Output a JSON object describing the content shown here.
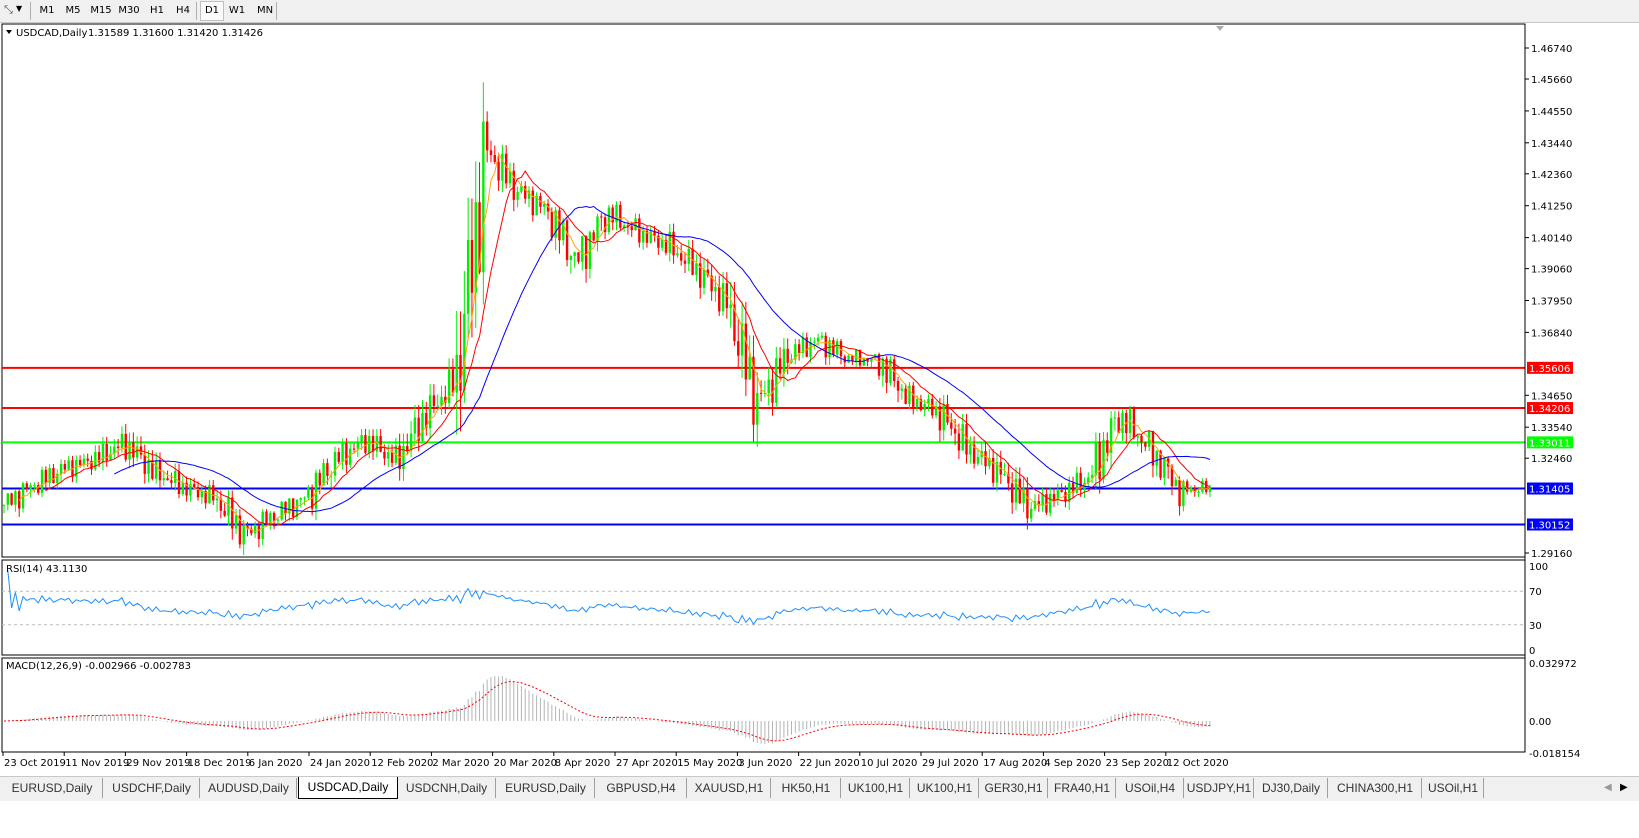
{
  "toolbar": {
    "tool_icon": "line-tools-icon",
    "timeframes": [
      "M1",
      "M5",
      "M15",
      "M30",
      "H1",
      "H4",
      "D1",
      "W1",
      "MN"
    ],
    "active_timeframe": "D1"
  },
  "chart_header": {
    "symbol": "USDCAD,Daily",
    "ohlc": "1.31589 1.31600 1.31420 1.31426"
  },
  "indicators": {
    "rsi_label": "RSI(14) 43.1130",
    "macd_label": "MACD(12,26,9) -0.002966 -0.002783"
  },
  "colors": {
    "bull": "#00ee00",
    "bear": "#ff0000",
    "ma_fast": "#ffa500",
    "ma_mid": "#ff0000",
    "ma_slow": "#0000ff",
    "rsi": "#1e90ff",
    "macd_hist": "#b4b4b4",
    "macd_signal": "#ff0000"
  },
  "chart_data": {
    "type": "candlestick",
    "price_axis_ticks": [
      "1.46740",
      "1.45660",
      "1.44550",
      "1.43440",
      "1.42360",
      "1.41250",
      "1.40140",
      "1.39060",
      "1.37950",
      "1.36840",
      "1.34650",
      "1.33540",
      "1.32460",
      "1.29160"
    ],
    "price_range": [
      1.2916,
      1.4674
    ],
    "horizontal_levels": [
      {
        "price": "1.35606",
        "color": "#ff0000"
      },
      {
        "price": "1.34206",
        "color": "#ff0000"
      },
      {
        "price": "1.33011",
        "color": "#00ff00"
      },
      {
        "price": "1.31405",
        "color": "#0000ff"
      },
      {
        "price": "1.30152",
        "color": "#0000ff"
      }
    ],
    "date_ticks": [
      "23 Oct 2019",
      "11 Nov 2019",
      "29 Nov 2019",
      "18 Dec 2019",
      "6 Jan 2020",
      "24 Jan 2020",
      "12 Feb 2020",
      "2 Mar 2020",
      "20 Mar 2020",
      "8 Apr 2020",
      "27 Apr 2020",
      "15 May 2020",
      "3 Jun 2020",
      "22 Jun 2020",
      "10 Jul 2020",
      "29 Jul 2020",
      "17 Aug 2020",
      "4 Sep 2020",
      "23 Sep 2020",
      "12 Oct 2020"
    ],
    "approx_closes": [
      1.3084,
      1.3153,
      1.3212,
      1.324,
      1.3299,
      1.3198,
      1.3143,
      1.3108,
      1.2979,
      1.3049,
      1.3108,
      1.324,
      1.331,
      1.324,
      1.3397,
      1.3519,
      1.4319,
      1.418,
      1.411,
      1.3929,
      1.4103,
      1.4034,
      1.3988,
      1.3901,
      1.378,
      1.3432,
      1.3606,
      1.3658,
      1.3595,
      1.3588,
      1.3456,
      1.3407,
      1.3275,
      1.3198,
      1.3073,
      1.3118,
      1.3178,
      1.3397,
      1.3282,
      1.3136,
      1.31426
    ],
    "rsi_axis_ticks": [
      "100",
      "70",
      "30",
      "0"
    ],
    "macd_axis_ticks": [
      "0.032972",
      "0.00",
      "-0.018154"
    ]
  },
  "tabs": [
    "EURUSD,Daily",
    "USDCHF,Daily",
    "AUDUSD,Daily",
    "USDCAD,Daily",
    "USDCNH,Daily",
    "EURUSD,Daily",
    "GBPUSD,H4",
    "XAUUSD,H1",
    "HK50,H1",
    "UK100,H1",
    "UK100,H1",
    "GER30,H1",
    "FRA40,H1",
    "USOil,H4",
    "USDJPY,H1",
    "DJ30,Daily",
    "CHINA300,H1",
    "USOil,H1"
  ],
  "active_tab": "USDCAD,Daily"
}
